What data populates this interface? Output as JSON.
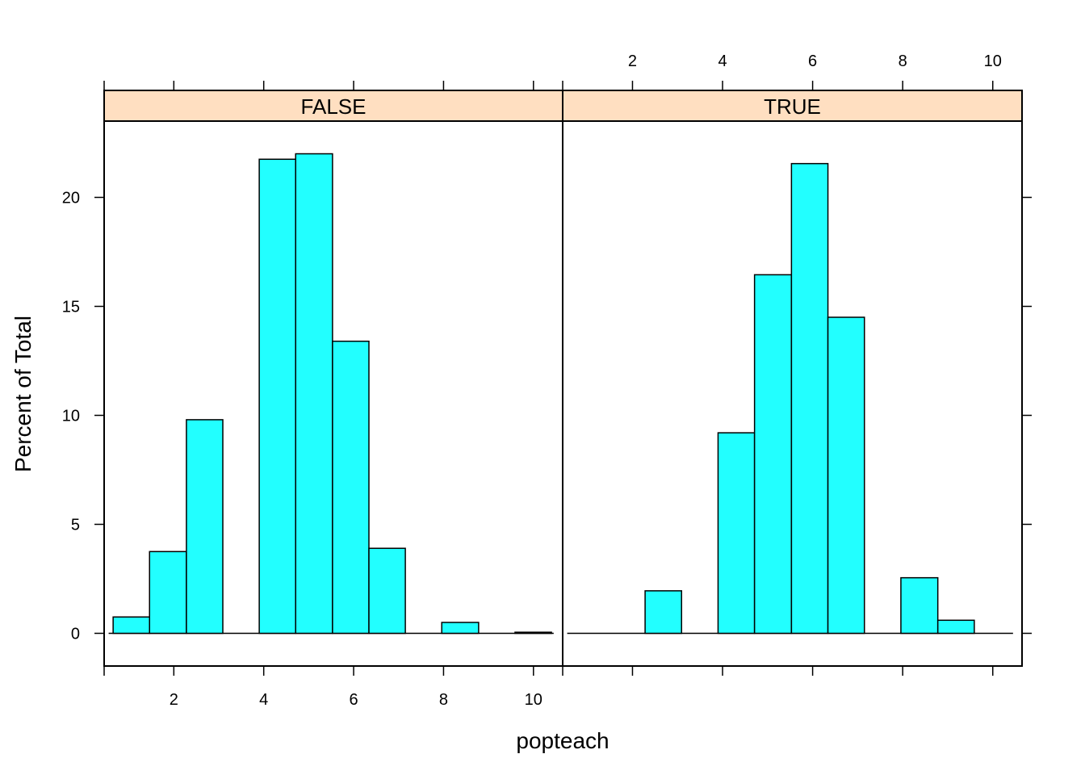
{
  "chart_data": {
    "type": "bar",
    "subtype": "histogram",
    "xlabel": "popteach",
    "ylabel": "Percent of Total",
    "xlim": [
      0.45,
      10.65
    ],
    "ylim": [
      -1.5,
      23.5
    ],
    "xticks": [
      2,
      4,
      6,
      8,
      10
    ],
    "yticks": [
      0,
      5,
      10,
      15,
      20
    ],
    "bin_width": 0.8125,
    "bar_color": "#22ffff",
    "strip_color": "#ffdfc1",
    "panels": [
      {
        "strip": "FALSE",
        "baseline_range": [
          0.55,
          10.45
        ],
        "bins": [
          {
            "x0": 0.65,
            "x1": 1.46,
            "value": 0.75
          },
          {
            "x0": 1.46,
            "x1": 2.28,
            "value": 3.75
          },
          {
            "x0": 2.28,
            "x1": 3.09,
            "value": 9.8
          },
          {
            "x0": 3.09,
            "x1": 3.9,
            "value": 0
          },
          {
            "x0": 3.9,
            "x1": 4.71,
            "value": 21.75
          },
          {
            "x0": 4.71,
            "x1": 5.53,
            "value": 22.0
          },
          {
            "x0": 5.53,
            "x1": 6.34,
            "value": 13.4
          },
          {
            "x0": 6.34,
            "x1": 7.15,
            "value": 3.9
          },
          {
            "x0": 7.15,
            "x1": 7.96,
            "value": 0
          },
          {
            "x0": 7.96,
            "x1": 8.78,
            "value": 0.5
          },
          {
            "x0": 8.78,
            "x1": 9.59,
            "value": 0
          },
          {
            "x0": 9.59,
            "x1": 10.4,
            "value": 0.05
          }
        ]
      },
      {
        "strip": "TRUE",
        "baseline_range": [
          0.55,
          10.45
        ],
        "bins": [
          {
            "x0": 2.28,
            "x1": 3.09,
            "value": 1.95
          },
          {
            "x0": 3.09,
            "x1": 3.9,
            "value": 0
          },
          {
            "x0": 3.9,
            "x1": 4.71,
            "value": 9.2
          },
          {
            "x0": 4.71,
            "x1": 5.53,
            "value": 16.45
          },
          {
            "x0": 5.53,
            "x1": 6.34,
            "value": 21.55
          },
          {
            "x0": 6.34,
            "x1": 7.15,
            "value": 14.5
          },
          {
            "x0": 7.15,
            "x1": 7.96,
            "value": 0
          },
          {
            "x0": 7.96,
            "x1": 8.78,
            "value": 2.55
          },
          {
            "x0": 8.78,
            "x1": 9.59,
            "value": 0.6
          }
        ]
      }
    ]
  }
}
